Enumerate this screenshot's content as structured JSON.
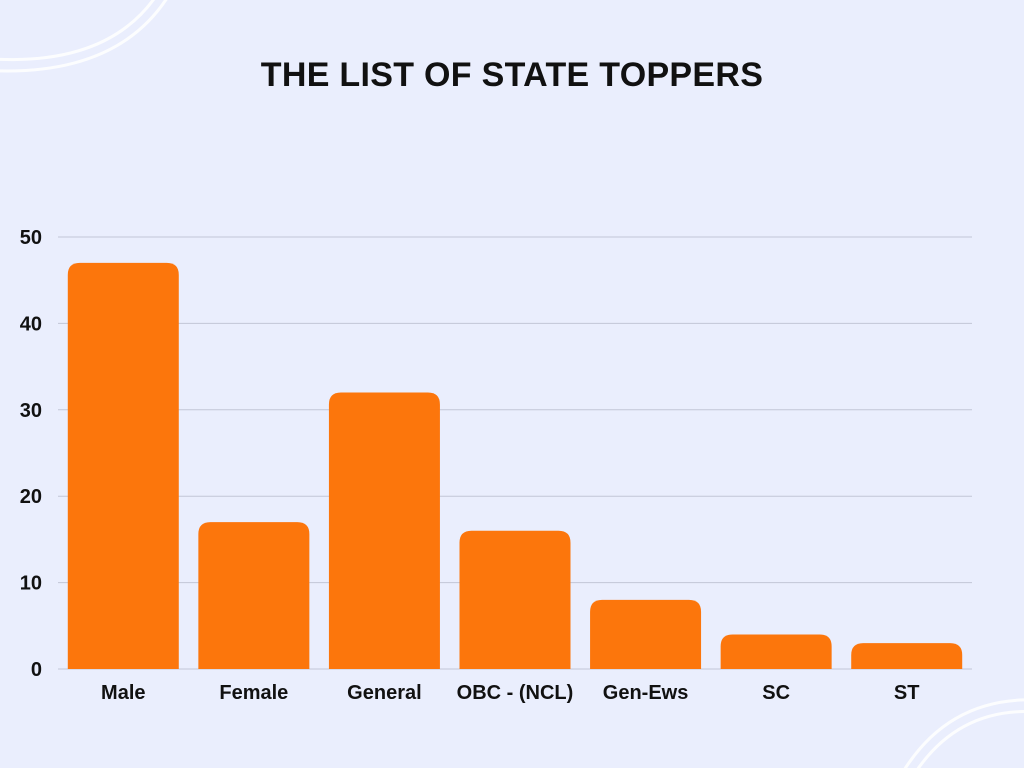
{
  "chart_data": {
    "type": "bar",
    "title": "THE LIST OF STATE TOPPERS",
    "categories": [
      "Male",
      "Female",
      "General",
      "OBC - (NCL)",
      "Gen-Ews",
      "SC",
      "ST"
    ],
    "values": [
      47,
      17,
      32,
      16,
      8,
      4,
      3
    ],
    "ylim": [
      0,
      50
    ],
    "yticks": [
      "0",
      "10",
      "20",
      "30",
      "40",
      "50"
    ],
    "xlabel": "",
    "ylabel": "",
    "grid": true,
    "legend": "none",
    "bar_color": "#fc760c",
    "grid_color": "#c2c6d6",
    "background": "#eaeefd"
  }
}
